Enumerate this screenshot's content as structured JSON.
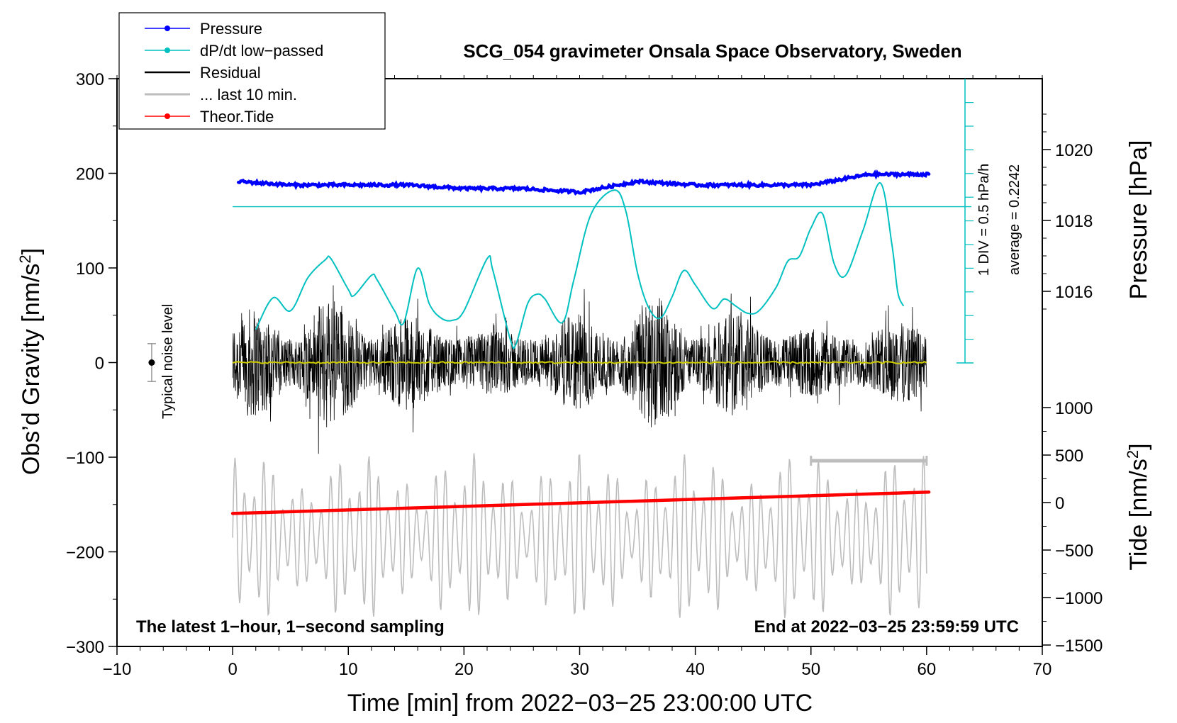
{
  "chart_data": {
    "type": "line",
    "title": "SCG_054 gravimeter Onsala Space Observatory, Sweden",
    "xlabel": "Time [min] from 2022−03−25 23:00:00 UTC",
    "ylabel_left": "Obs’d Gravity [nm/s²]",
    "ylabel_left_main": "Obs’d Gravity [nm/s",
    "ylabel_left_sup": "2",
    "ylabel_left_end": "]",
    "ylabel_right_top": "Pressure [hPa]",
    "ylabel_right_bottom": "Tide [nm/s²]",
    "ylabel_right_bottom_main": "Tide [nm/s",
    "ylabel_right_bottom_sup": "2",
    "ylabel_right_bottom_end": "]",
    "xlim": [
      -10,
      70
    ],
    "ylim_left": [
      -300,
      300
    ],
    "x_ticks": [
      "−10",
      "0",
      "10",
      "20",
      "30",
      "40",
      "50",
      "60",
      "70"
    ],
    "x_tick_values": [
      -10,
      0,
      10,
      20,
      30,
      40,
      50,
      60,
      70
    ],
    "y_ticks_left": [
      "300",
      "200",
      "100",
      "0",
      "−100",
      "−200",
      "−300"
    ],
    "y_tick_values_left": [
      300,
      200,
      100,
      0,
      -100,
      -200,
      -300
    ],
    "pressure_ticks": [
      "1020",
      "1018",
      "1016"
    ],
    "pressure_tick_values": [
      1020,
      1018,
      1016
    ],
    "tide_ticks": [
      "1000",
      "500",
      "0",
      "−500",
      "−1000",
      "−1500"
    ],
    "tide_tick_values": [
      1000,
      500,
      0,
      -500,
      -1000,
      -1500
    ],
    "legend": [
      {
        "label": "Pressure",
        "color": "#0000ff",
        "marker": true
      },
      {
        "label": "dP/dt low−passed",
        "color": "#00c0c0",
        "marker": true
      },
      {
        "label": "Residual",
        "color": "#000000",
        "marker": false
      },
      {
        "label": "... last 10 min.",
        "color": "#bdbdbd",
        "marker": false
      },
      {
        "label": "Theor.Tide",
        "color": "#ff0000",
        "marker": true
      }
    ],
    "annotations": {
      "bottom_left": "The latest 1−hour, 1−second sampling",
      "bottom_right": "End at 2022−03−25 23:59:59 UTC",
      "noise_label": "Typical noise level",
      "div_label": "1 DIV = 0.5 hPa/h",
      "average_label": "average = 0.2242"
    },
    "series": [
      {
        "name": "Pressure",
        "color": "#0000ff",
        "unit": "hPa",
        "x": [
          0.5,
          5,
          10,
          15,
          20,
          25,
          30,
          35,
          40,
          45,
          50,
          55,
          60.2
        ],
        "y": [
          1019.1,
          1019.0,
          1019.0,
          1019.0,
          1018.9,
          1018.9,
          1018.8,
          1019.1,
          1019.0,
          1019.0,
          1019.0,
          1019.3,
          1019.3
        ]
      },
      {
        "name": "dP/dt low−passed",
        "color": "#00c0c0",
        "unit": "hPa/h (1 DIV = 0.5)",
        "x": [
          2,
          3.5,
          5,
          6.5,
          8,
          8.5,
          10,
          10.5,
          12,
          12.5,
          14,
          14.8,
          16,
          17,
          18,
          19,
          20,
          22,
          22.5,
          24,
          24.5,
          25.5,
          26.3,
          27,
          28.5,
          29.5,
          31,
          33,
          34,
          35,
          36,
          37,
          38,
          39,
          40,
          41.5,
          42.5,
          43.5,
          44.5,
          45.5,
          47,
          48,
          49,
          50,
          51,
          52,
          53,
          54.5,
          56,
          57,
          57.5,
          58
        ],
        "y": [
          1.4,
          2.75,
          2.2,
          3.6,
          4.35,
          4.4,
          3.1,
          2.85,
          3.7,
          3.5,
          2.2,
          1.7,
          4.0,
          2.5,
          1.9,
          1.8,
          2.2,
          4.4,
          3.9,
          1.0,
          0.8,
          2.5,
          2.9,
          2.7,
          1.7,
          3.5,
          6.3,
          7.3,
          6.4,
          3.8,
          2.3,
          1.9,
          2.8,
          3.9,
          3.3,
          2.3,
          2.7,
          2.4,
          2.1,
          2.2,
          3.2,
          4.3,
          4.5,
          5.7,
          6.3,
          4.2,
          3.7,
          5.6,
          7.6,
          5.0,
          3.0,
          2.4
        ]
      },
      {
        "name": "Residual",
        "color": "#000000",
        "unit": "nm/s²",
        "x": [
          0,
          60
        ],
        "y_min": [
          -95,
          -95
        ],
        "y_max": [
          95,
          95
        ]
      },
      {
        "name": "... last 10 min.",
        "color": "#bdbdbd",
        "unit": "nm/s²",
        "x": [
          50,
          60
        ],
        "y": [
          -100,
          -100
        ]
      },
      {
        "name": "Theor.Tide",
        "color": "#ff0000",
        "unit": "nm/s²",
        "x": [
          0,
          60.2
        ],
        "y": [
          -115,
          110
        ]
      },
      {
        "name": "Residual mean",
        "color": "#cccc00",
        "unit": "nm/s²",
        "x": [
          0,
          60
        ],
        "y": [
          0,
          0
        ]
      },
      {
        "name": "Gray trace",
        "color": "#bdbdbd",
        "unit": "nm/s²",
        "x": [
          0,
          60
        ],
        "y_min": [
          -275,
          -275
        ],
        "y_max": [
          -95,
          -95
        ]
      }
    ],
    "noise_level": {
      "x": -7,
      "center": 0,
      "half_range": 20
    }
  }
}
